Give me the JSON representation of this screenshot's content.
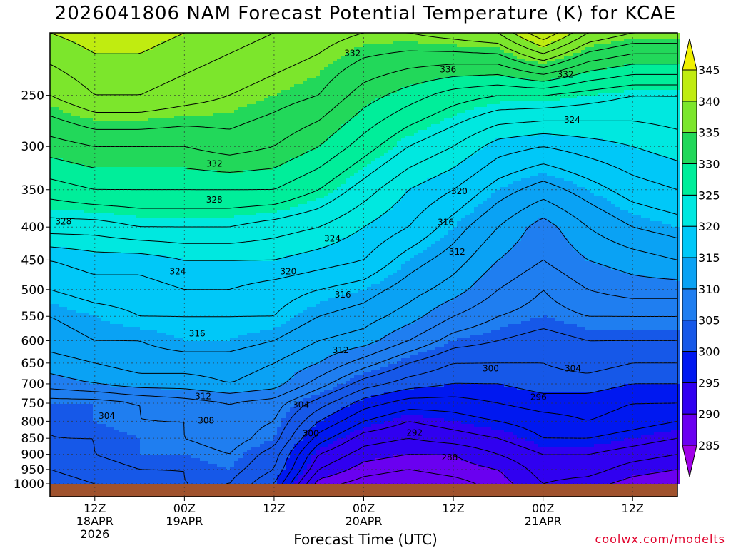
{
  "title": "2026041806 NAM Forecast Potential Temperature (K) for KCAE",
  "xlabel": "Forecast Time (UTC)",
  "watermark": "coolwx.com/modelts",
  "chart_data": {
    "type": "heatmap",
    "title": "2026041806 NAM Forecast Potential Temperature (K) for KCAE",
    "xlabel": "Forecast Time (UTC)",
    "ylabel": "",
    "y_axis": {
      "scale": "log-pressure",
      "range_hPa": [
        1000,
        200
      ],
      "ticks": [
        1000,
        950,
        900,
        850,
        800,
        750,
        700,
        650,
        600,
        550,
        500,
        450,
        400,
        350,
        300,
        250
      ]
    },
    "x_axis": {
      "range_hours": [
        0,
        84
      ],
      "ticks": [
        {
          "hour": 6,
          "label": [
            "12Z",
            "18APR",
            "2026"
          ]
        },
        {
          "hour": 18,
          "label": [
            "00Z",
            "19APR"
          ]
        },
        {
          "hour": 30,
          "label": [
            "12Z"
          ]
        },
        {
          "hour": 42,
          "label": [
            "00Z",
            "20APR"
          ]
        },
        {
          "hour": 54,
          "label": [
            "12Z"
          ]
        },
        {
          "hour": 66,
          "label": [
            "00Z",
            "21APR"
          ]
        },
        {
          "hour": 78,
          "label": [
            "12Z"
          ]
        }
      ],
      "grid": true
    },
    "colorbar": {
      "levels": [
        285,
        290,
        295,
        300,
        305,
        310,
        315,
        320,
        325,
        330,
        335,
        340,
        345
      ],
      "colors": [
        "#a000e8",
        "#6a00f0",
        "#3000f0",
        "#0018f0",
        "#1658e8",
        "#1f7ef0",
        "#0aa2f4",
        "#00c8f8",
        "#00e8e0",
        "#00ee9a",
        "#22d85a",
        "#7ce62c",
        "#c0ec10",
        "#f0f000"
      ],
      "labels": [
        "285",
        "290",
        "295",
        "300",
        "305",
        "310",
        "315",
        "320",
        "325",
        "330",
        "335",
        "340",
        "345"
      ]
    },
    "theta_profile": {
      "pressure_hPa": [
        1000,
        950,
        900,
        850,
        800,
        750,
        700,
        650,
        600,
        550,
        500,
        450,
        400,
        350,
        300,
        250,
        200
      ],
      "hours": [
        0,
        6,
        12,
        18,
        24,
        30,
        36,
        42,
        48,
        54,
        60,
        66,
        72,
        78,
        84
      ],
      "values": [
        [
          301,
          302,
          303,
          304,
          304,
          300,
          289,
          287,
          286,
          287,
          289,
          292,
          291,
          289,
          288
        ],
        [
          302,
          303,
          304,
          304,
          305,
          302,
          292,
          289,
          288,
          289,
          290,
          293,
          293,
          291,
          290
        ],
        [
          303,
          304,
          305,
          305,
          306,
          303,
          294,
          291,
          290,
          290,
          292,
          294,
          294,
          293,
          292
        ],
        [
          304,
          304,
          305,
          306,
          307,
          305,
          297,
          293,
          292,
          293,
          294,
          296,
          296,
          295,
          294
        ],
        [
          304,
          305,
          306,
          306,
          307,
          306,
          300,
          296,
          294,
          295,
          296,
          297,
          298,
          297,
          296
        ],
        [
          305,
          305,
          306,
          307,
          308,
          307,
          303,
          299,
          297,
          297,
          298,
          299,
          299,
          298,
          298
        ],
        [
          309,
          310,
          311,
          311,
          312,
          311,
          307,
          303,
          301,
          300,
          300,
          301,
          301,
          300,
          300
        ],
        [
          311,
          312,
          313,
          313,
          313,
          312,
          310,
          307,
          304,
          302,
          302,
          302,
          303,
          302,
          302
        ],
        [
          313,
          314,
          314,
          315,
          315,
          314,
          312,
          311,
          308,
          305,
          304,
          303,
          304,
          304,
          304
        ],
        [
          314,
          315,
          316,
          316,
          316,
          316,
          314,
          313,
          311,
          308,
          306,
          305,
          306,
          306,
          306
        ],
        [
          316,
          317,
          317,
          318,
          318,
          317,
          316,
          315,
          313,
          311,
          308,
          306,
          308,
          309,
          309
        ],
        [
          318,
          319,
          319,
          320,
          320,
          320,
          319,
          318,
          315,
          313,
          310,
          308,
          310,
          311,
          312
        ],
        [
          323,
          323,
          324,
          324,
          324,
          323,
          322,
          320,
          318,
          315,
          312,
          309,
          312,
          314,
          315
        ],
        [
          327,
          328,
          328,
          328,
          328,
          328,
          326,
          323,
          320,
          318,
          315,
          313,
          315,
          317,
          318
        ],
        [
          331,
          332,
          332,
          332,
          333,
          332,
          330,
          327,
          324,
          322,
          319,
          318,
          319,
          320,
          321
        ],
        [
          336,
          338,
          338,
          337,
          336,
          335,
          334,
          331,
          329,
          327,
          326,
          326,
          325,
          324,
          324
        ],
        [
          340,
          341,
          341,
          340,
          339,
          338,
          337,
          336,
          336,
          337,
          338,
          344,
          338,
          336,
          336
        ]
      ]
    },
    "contour_interval": 2,
    "contour_labels": [
      {
        "text": "332",
        "hour": 40.5,
        "p": 215
      },
      {
        "text": "336",
        "hour": 53.3,
        "p": 228
      },
      {
        "text": "332",
        "hour": 69,
        "p": 232
      },
      {
        "text": "324",
        "hour": 69.9,
        "p": 273
      },
      {
        "text": "332",
        "hour": 22,
        "p": 319
      },
      {
        "text": "320",
        "hour": 54.8,
        "p": 352
      },
      {
        "text": "328",
        "hour": 22,
        "p": 363
      },
      {
        "text": "328",
        "hour": 1.8,
        "p": 392
      },
      {
        "text": "316",
        "hour": 53,
        "p": 393
      },
      {
        "text": "324",
        "hour": 37.8,
        "p": 417
      },
      {
        "text": "312",
        "hour": 54.5,
        "p": 437
      },
      {
        "text": "324",
        "hour": 17.1,
        "p": 469
      },
      {
        "text": "320",
        "hour": 31.9,
        "p": 469
      },
      {
        "text": "316",
        "hour": 39.2,
        "p": 509
      },
      {
        "text": "316",
        "hour": 19.7,
        "p": 585
      },
      {
        "text": "312",
        "hour": 38.9,
        "p": 621
      },
      {
        "text": "300",
        "hour": 59,
        "p": 663
      },
      {
        "text": "304",
        "hour": 70,
        "p": 663
      },
      {
        "text": "312",
        "hour": 20.5,
        "p": 732
      },
      {
        "text": "296",
        "hour": 65.4,
        "p": 734
      },
      {
        "text": "304",
        "hour": 33.6,
        "p": 755
      },
      {
        "text": "304",
        "hour": 7.6,
        "p": 785
      },
      {
        "text": "308",
        "hour": 20.9,
        "p": 798
      },
      {
        "text": "300",
        "hour": 34.9,
        "p": 836
      },
      {
        "text": "292",
        "hour": 48.8,
        "p": 834
      },
      {
        "text": "288",
        "hour": 53.5,
        "p": 910
      }
    ]
  }
}
